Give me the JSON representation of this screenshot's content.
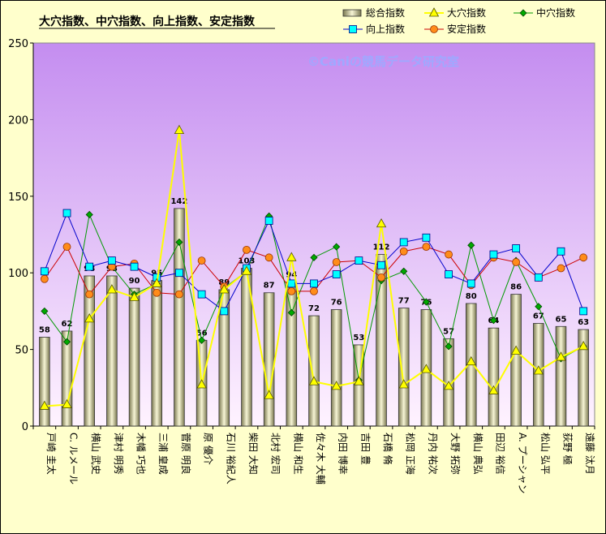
{
  "chart_data": {
    "type": "bar",
    "title": "大穴指数、中穴指数、向上指数、安定指数",
    "watermark": "©Caniの競馬データ研究室",
    "ylim": [
      0,
      250
    ],
    "yticks": [
      0,
      50,
      100,
      150,
      200,
      250
    ],
    "grid": false,
    "legend_position": "top-right",
    "categories": [
      "戸崎 圭太",
      "C. ルメール",
      "横山 武史",
      "津村 明秀",
      "木幡 巧也",
      "三浦 皇成",
      "菅原 明良",
      "原 優介",
      "石川 裕紀人",
      "柴田 大知",
      "北村 宏司",
      "横山 和生",
      "佐々木 大輔",
      "内田 博幸",
      "吉田 豊",
      "石橋 脩",
      "松岡 正海",
      "丹内 祐次",
      "大野 拓弥",
      "横山 典弘",
      "田辺 裕信",
      "A. プーシャン",
      "松山 弘平",
      "荻野 極",
      "遠藤 汰月"
    ],
    "series": [
      {
        "name": "総合指数",
        "kind": "bar",
        "color": "#f2f0c8",
        "values": [
          58,
          62,
          98,
          98,
          90,
          95,
          142,
          56,
          89,
          103,
          87,
          94,
          72,
          76,
          53,
          112,
          77,
          76,
          57,
          80,
          64,
          86,
          67,
          65,
          63
        ]
      },
      {
        "name": "大穴指数",
        "kind": "line",
        "color": "#ffff00",
        "values": [
          13,
          14,
          70,
          89,
          84,
          93,
          193,
          27,
          89,
          101,
          20,
          110,
          29,
          26,
          29,
          132,
          27,
          37,
          26,
          42,
          23,
          49,
          36,
          45,
          52
        ]
      },
      {
        "name": "中穴指数",
        "kind": "line",
        "color": "#009900",
        "values": [
          75,
          55,
          138,
          104,
          86,
          93,
          120,
          56,
          90,
          101,
          137,
          74,
          110,
          117,
          30,
          95,
          101,
          81,
          52,
          118,
          69,
          108,
          78,
          44,
          52
        ]
      },
      {
        "name": "向上指数",
        "kind": "line",
        "color": "#0000cc",
        "values": [
          101,
          139,
          104,
          108,
          104,
          97,
          100,
          86,
          75,
          103,
          134,
          93,
          93,
          99,
          108,
          105,
          120,
          123,
          99,
          93,
          112,
          116,
          97,
          114,
          75
        ]
      },
      {
        "name": "安定指数",
        "kind": "line",
        "color": "#cc0000",
        "values": [
          96,
          117,
          86,
          104,
          106,
          87,
          86,
          108,
          91,
          115,
          110,
          88,
          88,
          107,
          108,
          97,
          114,
          117,
          112,
          92,
          110,
          107,
          97,
          103,
          110
        ]
      }
    ]
  }
}
